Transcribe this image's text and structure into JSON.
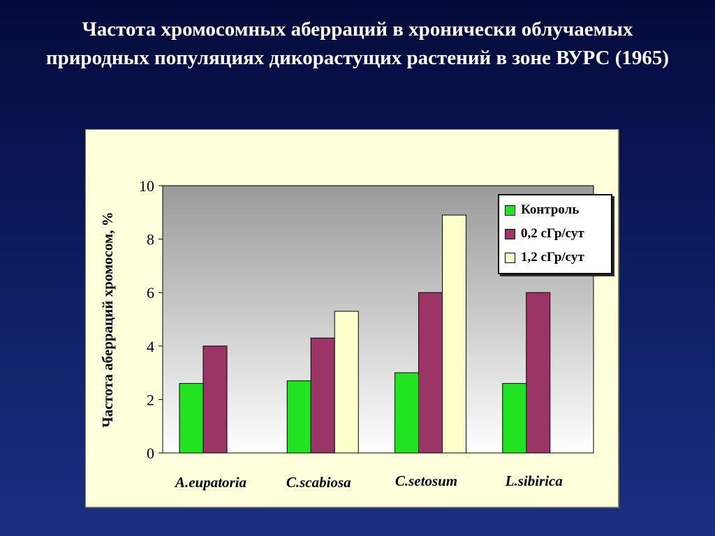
{
  "slide": {
    "title": "Частота хромосомных аберраций в хронически облучаемых природных популяциях дикорастущих растений в зоне ВУРС (1965)"
  },
  "chart_data": {
    "type": "bar",
    "categories": [
      "A.eupatoria",
      "C.scabiosa",
      "C.setosum",
      "L.sibirica"
    ],
    "series": [
      {
        "name": "Контроль",
        "color": "#22e322",
        "values": [
          2.6,
          2.7,
          3.0,
          2.6
        ]
      },
      {
        "name": "0,2 сГр/сут",
        "color": "#9b3565",
        "values": [
          4.0,
          4.3,
          6.0,
          6.0
        ]
      },
      {
        "name": "1,2 сГр/сут",
        "color": "#ffffcc",
        "values": [
          null,
          5.3,
          8.9,
          null
        ]
      }
    ],
    "title": "",
    "xlabel": "",
    "ylabel": "Частота аберраций хромосом, %",
    "ylim": [
      0,
      10
    ],
    "yticks": [
      0,
      2,
      4,
      6,
      8,
      10
    ],
    "grid": false,
    "legend_position": "top-right"
  }
}
